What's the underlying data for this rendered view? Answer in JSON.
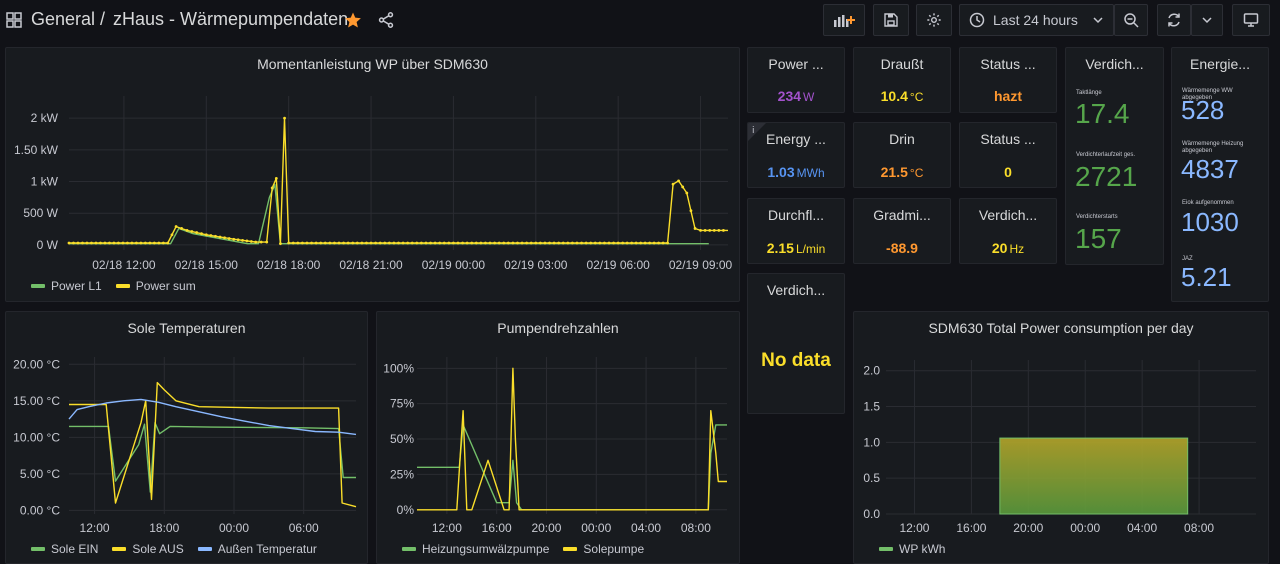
{
  "header": {
    "folder": "General",
    "separator": "/",
    "title": "zHaus - Wärmepumpendaten",
    "time_range": "Last 24 hours"
  },
  "colors": {
    "green": "#73bf69",
    "yellow": "#fade2a",
    "blue": "#8ab8ff",
    "purple": "#a352cc",
    "orange": "#ff9830",
    "stat_blue": "#5794f2",
    "big_green": "#56a64b",
    "big_blue": "#8ab8ff"
  },
  "stats": {
    "power": {
      "title": "Power ...",
      "value": "234",
      "unit": "W"
    },
    "draussen": {
      "title": "Draußt",
      "value": "10.4",
      "unit": "°C"
    },
    "status1": {
      "title": "Status ...",
      "value": "hazt"
    },
    "energy": {
      "title": "Energy ...",
      "value": "1.03",
      "unit": "MWh"
    },
    "drin": {
      "title": "Drin",
      "value": "21.5",
      "unit": "°C"
    },
    "status2": {
      "title": "Status ...",
      "value": "0"
    },
    "durchfluss": {
      "title": "Durchfl...",
      "value": "2.15",
      "unit": "L/min"
    },
    "gradmin": {
      "title": "Gradmi...",
      "value": "-88.9"
    },
    "verdich_hz": {
      "title": "Verdich...",
      "value": "20",
      "unit": "Hz"
    },
    "verdich_nodata": {
      "title": "Verdich...",
      "value": "No data"
    }
  },
  "verdichter": {
    "title": "Verdich...",
    "items": [
      {
        "label": "Taktlänge",
        "value": "17.4"
      },
      {
        "label": "Verdichterlaufzeit ges.",
        "value": "2721"
      },
      {
        "label": "Verdichterstarts",
        "value": "157"
      }
    ]
  },
  "energie": {
    "title": "Energie...",
    "items": [
      {
        "label": "Wärmemenge WW abgegeben",
        "value": "528"
      },
      {
        "label": "Wärmemenge Heizung abgegeben",
        "value": "4837"
      },
      {
        "label": "Eiok aufgenommen",
        "value": "1030"
      },
      {
        "label": "JAZ",
        "value": "5.21"
      }
    ]
  },
  "chart_data": [
    {
      "id": "momentan",
      "type": "line",
      "title": "Momentanleistung WP über SDM630",
      "x_ticks": [
        "02/18 12:00",
        "02/18 15:00",
        "02/18 18:00",
        "02/18 21:00",
        "02/19 00:00",
        "02/19 03:00",
        "02/19 06:00",
        "02/19 09:00"
      ],
      "x_tick_hours": [
        12,
        15,
        18,
        21,
        24,
        27,
        30,
        33
      ],
      "y_ticks": [
        "0 W",
        "500 W",
        "1 kW",
        "1.50 kW",
        "2 kW"
      ],
      "y_tick_values": [
        0,
        500,
        1000,
        1500,
        2000
      ],
      "xlim": [
        10.0,
        34.0
      ],
      "ylim": [
        -80,
        2350
      ],
      "series": [
        {
          "name": "Power L1",
          "color": "green",
          "points": [
            [
              10.0,
              20
            ],
            [
              13.7,
              20
            ],
            [
              14.0,
              260
            ],
            [
              14.5,
              180
            ],
            [
              16.5,
              20
            ],
            [
              16.9,
              20
            ],
            [
              17.3,
              750
            ],
            [
              17.5,
              950
            ],
            [
              17.7,
              20
            ],
            [
              17.8,
              20
            ],
            [
              33.0,
              20
            ],
            [
              33.3,
              20
            ]
          ]
        },
        {
          "name": "Power sum",
          "color": "yellow",
          "points": [
            [
              10.0,
              30
            ],
            [
              13.6,
              30
            ],
            [
              13.9,
              290
            ],
            [
              14.3,
              230
            ],
            [
              15.0,
              160
            ],
            [
              16.0,
              90
            ],
            [
              16.8,
              45
            ],
            [
              17.2,
              45
            ],
            [
              17.4,
              900
            ],
            [
              17.55,
              1050
            ],
            [
              17.7,
              20
            ],
            [
              17.85,
              2000
            ],
            [
              18.0,
              30
            ],
            [
              21.0,
              30
            ],
            [
              24.0,
              30
            ],
            [
              27.0,
              30
            ],
            [
              30.0,
              30
            ],
            [
              31.8,
              30
            ],
            [
              32.0,
              960
            ],
            [
              32.2,
              1010
            ],
            [
              32.5,
              820
            ],
            [
              32.8,
              260
            ],
            [
              33.0,
              230
            ],
            [
              34.0,
              230
            ]
          ]
        }
      ]
    },
    {
      "id": "sole",
      "type": "line",
      "title": "Sole Temperaturen",
      "x_ticks": [
        "12:00",
        "18:00",
        "00:00",
        "06:00"
      ],
      "x_tick_hours": [
        12,
        18,
        24,
        30
      ],
      "y_ticks": [
        "0.00 °C",
        "5.00 °C",
        "10.00 °C",
        "15.00 °C",
        "20.00 °C"
      ],
      "y_tick_values": [
        0,
        5,
        10,
        15,
        20
      ],
      "xlim": [
        9.8,
        34.5
      ],
      "ylim": [
        -0.5,
        21
      ],
      "series": [
        {
          "name": "Sole EIN",
          "color": "green",
          "points": [
            [
              9.8,
              11.5
            ],
            [
              13.2,
              11.5
            ],
            [
              13.8,
              4.0
            ],
            [
              15.8,
              9.0
            ],
            [
              16.3,
              11.8
            ],
            [
              16.8,
              2.5
            ],
            [
              17.2,
              12.0
            ],
            [
              17.6,
              10.5
            ],
            [
              18.5,
              11.5
            ],
            [
              22.0,
              11.4
            ],
            [
              30.0,
              11.3
            ],
            [
              33.0,
              11.2
            ],
            [
              33.4,
              4.5
            ],
            [
              34.5,
              4.5
            ]
          ]
        },
        {
          "name": "Sole AUS",
          "color": "yellow",
          "points": [
            [
              9.8,
              14.5
            ],
            [
              13.0,
              14.5
            ],
            [
              13.8,
              1.0
            ],
            [
              16.0,
              12.0
            ],
            [
              16.4,
              15.0
            ],
            [
              16.9,
              1.5
            ],
            [
              17.4,
              17.5
            ],
            [
              18.0,
              16.5
            ],
            [
              19.0,
              15.0
            ],
            [
              21.0,
              14.2
            ],
            [
              27.0,
              14.0
            ],
            [
              33.0,
              14.0
            ],
            [
              33.3,
              1.0
            ],
            [
              34.5,
              0.5
            ]
          ]
        },
        {
          "name": "Außen Temperatur",
          "color": "blue",
          "points": [
            [
              9.8,
              12.5
            ],
            [
              10.5,
              13.8
            ],
            [
              11.5,
              14.2
            ],
            [
              13.0,
              14.7
            ],
            [
              14.5,
              15.0
            ],
            [
              16.0,
              15.2
            ],
            [
              17.5,
              14.8
            ],
            [
              19.0,
              14.2
            ],
            [
              21.0,
              13.5
            ],
            [
              23.0,
              12.8
            ],
            [
              25.0,
              12.2
            ],
            [
              27.0,
              11.6
            ],
            [
              29.0,
              11.2
            ],
            [
              31.0,
              10.8
            ],
            [
              33.0,
              10.7
            ],
            [
              34.5,
              10.4
            ]
          ]
        }
      ]
    },
    {
      "id": "pumpen",
      "type": "line",
      "title": "Pumpendrehzahlen",
      "x_ticks": [
        "12:00",
        "16:00",
        "20:00",
        "00:00",
        "04:00",
        "08:00"
      ],
      "x_tick_hours": [
        12,
        16,
        20,
        24,
        28,
        32
      ],
      "y_ticks": [
        "0%",
        "25%",
        "50%",
        "75%",
        "100%"
      ],
      "y_tick_values": [
        0,
        25,
        50,
        75,
        100
      ],
      "xlim": [
        9.6,
        34.5
      ],
      "ylim": [
        -3,
        108
      ],
      "series": [
        {
          "name": "Heizungsumwälzpumpe",
          "color": "green",
          "points": [
            [
              9.6,
              30
            ],
            [
              13.0,
              30
            ],
            [
              13.3,
              60
            ],
            [
              16.0,
              5
            ],
            [
              17.0,
              5
            ],
            [
              17.3,
              35
            ],
            [
              17.6,
              5
            ],
            [
              18.0,
              0
            ],
            [
              28.0,
              0
            ],
            [
              33.0,
              0
            ],
            [
              33.2,
              40
            ],
            [
              33.6,
              60
            ],
            [
              34.5,
              60
            ]
          ]
        },
        {
          "name": "Solepumpe",
          "color": "yellow",
          "points": [
            [
              9.6,
              0
            ],
            [
              12.8,
              0
            ],
            [
              13.3,
              70
            ],
            [
              13.6,
              0
            ],
            [
              14.0,
              0
            ],
            [
              15.3,
              35
            ],
            [
              16.6,
              0
            ],
            [
              17.0,
              0
            ],
            [
              17.3,
              100
            ],
            [
              17.5,
              50
            ],
            [
              17.8,
              0
            ],
            [
              33.0,
              0
            ],
            [
              33.2,
              70
            ],
            [
              33.6,
              40
            ],
            [
              33.8,
              20
            ],
            [
              34.5,
              20
            ]
          ]
        }
      ]
    },
    {
      "id": "sdm630",
      "type": "bar",
      "title": "SDM630 Total Power consumption per day",
      "x_ticks": [
        "12:00",
        "16:00",
        "20:00",
        "00:00",
        "04:00",
        "08:00"
      ],
      "x_tick_hours": [
        12,
        16,
        20,
        24,
        28,
        32
      ],
      "y_ticks": [
        "0.0",
        "0.5",
        "1.0",
        "1.5",
        "2.0"
      ],
      "y_tick_values": [
        0,
        0.5,
        1.0,
        1.5,
        2.0
      ],
      "xlim": [
        10.0,
        36.0
      ],
      "ylim": [
        0,
        2.15
      ],
      "series": [
        {
          "name": "WP kWh",
          "color": "green",
          "bars": [
            {
              "x0": 18.0,
              "x1": 31.2,
              "value": 1.06
            }
          ]
        }
      ]
    }
  ]
}
